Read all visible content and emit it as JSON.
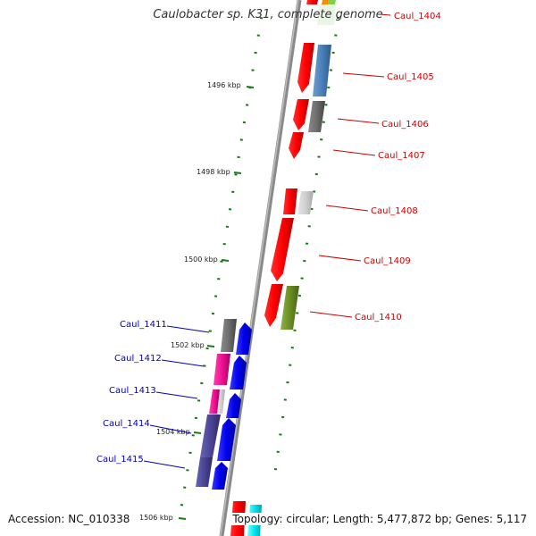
{
  "title": "Caulobacter sp. K31, complete genome",
  "accession": "Accession: NC_010338",
  "topology": "Topology: circular; Length: 5,477,872 bp; Genes: 5,117",
  "colors": {
    "right_labels": "#cc0000",
    "left_labels": "#0000bb",
    "ticks": "#1a7a1a",
    "backbone": "#888888"
  },
  "ticks": [
    {
      "label": "1496 kbp"
    },
    {
      "label": "1498 kbp"
    },
    {
      "label": "1500 kbp"
    },
    {
      "label": "1502 kbp"
    },
    {
      "label": "1504 kbp"
    },
    {
      "label": "1506 kbp"
    }
  ],
  "genes_right": [
    {
      "label": "Caul_1404"
    },
    {
      "label": "Caul_1405"
    },
    {
      "label": "Caul_1406"
    },
    {
      "label": "Caul_1407"
    },
    {
      "label": "Caul_1408"
    },
    {
      "label": "Caul_1409"
    },
    {
      "label": "Caul_1410"
    }
  ],
  "genes_left": [
    {
      "label": "Caul_1411"
    },
    {
      "label": "Caul_1412"
    },
    {
      "label": "Caul_1413"
    },
    {
      "label": "Caul_1414"
    },
    {
      "label": "Caul_1415"
    }
  ]
}
